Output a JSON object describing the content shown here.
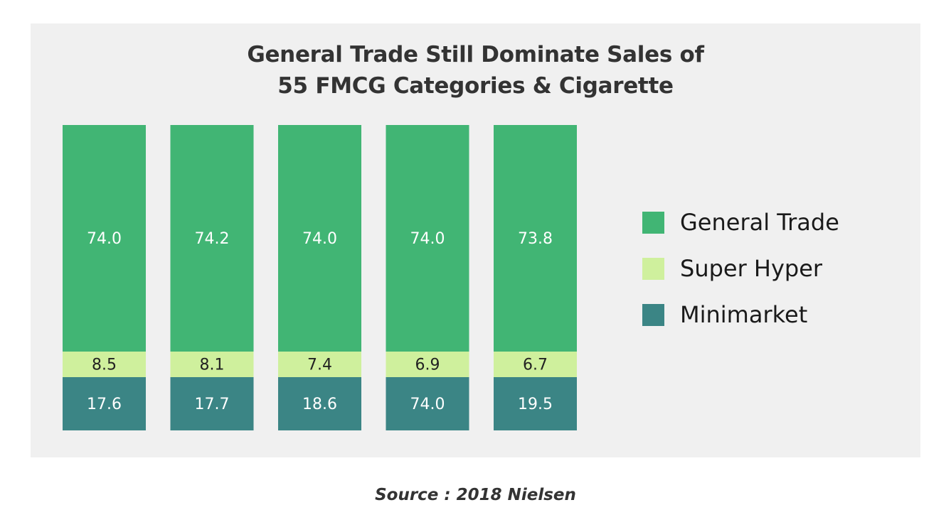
{
  "chart_data": {
    "type": "bar",
    "stacked": true,
    "title": "General Trade Still Dominate Sales of 55 FMCG Categories & Cigarette",
    "title_lines": [
      "General Trade Still Dominate Sales of",
      "55 FMCG Categories & Cigarette"
    ],
    "xlabel": "",
    "ylabel": "",
    "categories": [
      "",
      "",
      "",
      "",
      ""
    ],
    "series": [
      {
        "name": "Minimarket",
        "color": "#3b8585",
        "label_color": "#ffffff",
        "values": [
          17.6,
          17.7,
          18.6,
          74.0,
          19.5
        ]
      },
      {
        "name": "Super Hyper",
        "color": "#cff09d",
        "label_color": "#222222",
        "values": [
          8.5,
          8.1,
          7.4,
          6.9,
          6.7
        ]
      },
      {
        "name": "General Trade",
        "color": "#41b574",
        "label_color": "#ffffff",
        "values": [
          74.0,
          74.2,
          74.0,
          74.0,
          73.8
        ]
      }
    ],
    "legend_order": [
      "General Trade",
      "Super Hyper",
      "Minimarket"
    ],
    "legend_position": "right",
    "grid": false,
    "axes_visible": false
  },
  "source": "Source : 2018 Nielsen"
}
